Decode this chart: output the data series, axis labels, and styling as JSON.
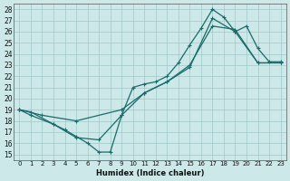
{
  "xlabel": "Humidex (Indice chaleur)",
  "xlim": [
    -0.5,
    23.5
  ],
  "ylim": [
    14.5,
    28.5
  ],
  "xticks": [
    0,
    1,
    2,
    3,
    4,
    5,
    6,
    7,
    8,
    9,
    10,
    11,
    12,
    13,
    14,
    15,
    16,
    17,
    18,
    19,
    20,
    21,
    22,
    23
  ],
  "yticks": [
    15,
    16,
    17,
    18,
    19,
    20,
    21,
    22,
    23,
    24,
    25,
    26,
    27,
    28
  ],
  "bg_color": "#cce8e8",
  "grid_color": "#a0c8c8",
  "line_color": "#1a6b6b",
  "curve1_x": [
    0,
    1,
    3,
    4,
    5,
    6,
    7,
    8,
    9,
    10,
    11,
    12,
    13,
    14,
    15,
    16,
    17,
    18,
    19,
    20,
    21,
    22,
    23
  ],
  "curve1_y": [
    19.0,
    18.8,
    17.7,
    17.2,
    16.6,
    16.0,
    15.2,
    15.2,
    18.5,
    21.0,
    21.3,
    21.5,
    22.0,
    23.2,
    24.8,
    26.3,
    28.0,
    27.3,
    26.0,
    26.5,
    24.5,
    23.3,
    23.3
  ],
  "curve2_x": [
    0,
    1,
    3,
    5,
    7,
    9,
    11,
    13,
    15,
    17,
    19,
    21,
    23
  ],
  "curve2_y": [
    19.0,
    18.5,
    17.7,
    16.5,
    16.3,
    18.5,
    20.5,
    21.5,
    22.8,
    27.2,
    26.0,
    23.2,
    23.2
  ],
  "curve3_x": [
    0,
    2,
    5,
    9,
    11,
    13,
    15,
    17,
    19,
    21,
    23
  ],
  "curve3_y": [
    19.0,
    18.5,
    18.0,
    19.0,
    20.5,
    21.5,
    23.0,
    26.5,
    26.2,
    23.2,
    23.2
  ]
}
